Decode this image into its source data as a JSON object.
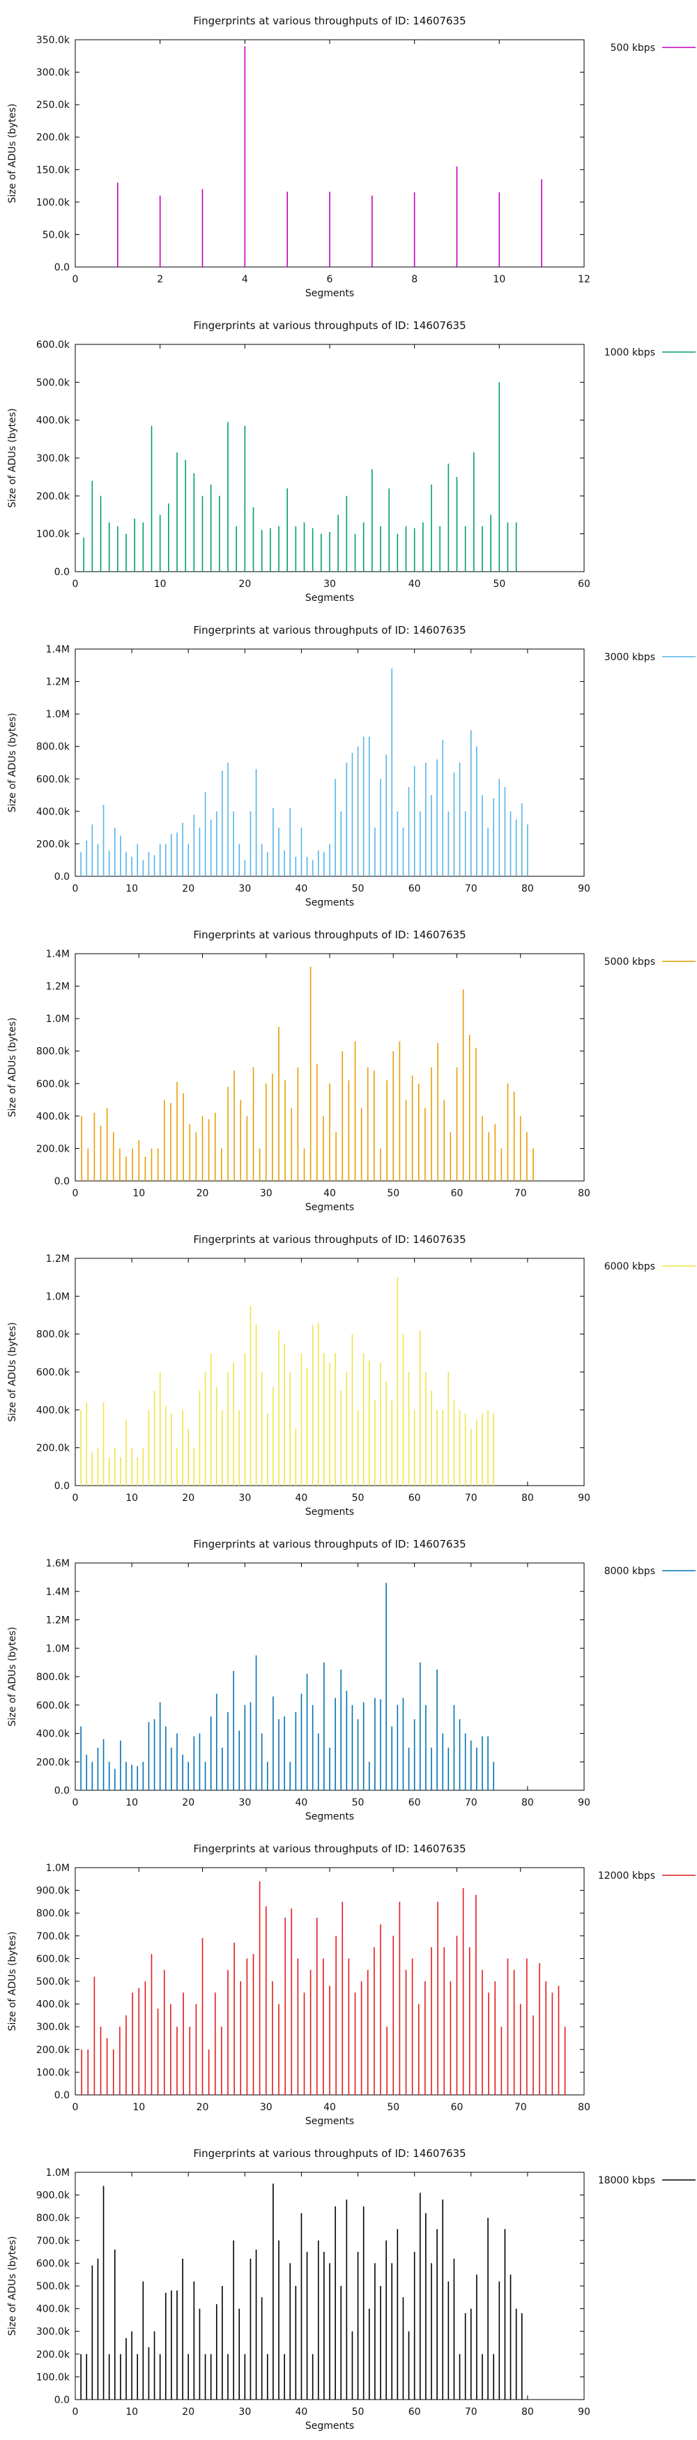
{
  "chart_data": [
    {
      "type": "bar",
      "title": "Fingerprints at various throughputs of ID: 14607635",
      "xlabel": "Segments",
      "ylabel": "Size of ADUs (bytes)",
      "legend": "top-right",
      "series": [
        {
          "name": "500 kbps",
          "color": "#c000c0",
          "x": [
            1,
            2,
            3,
            4,
            5,
            6,
            7,
            8,
            9,
            10,
            11
          ],
          "values": [
            130000,
            110000,
            120000,
            340000,
            116000,
            116000,
            110000,
            115000,
            155000,
            115000,
            135000
          ]
        }
      ],
      "xlim": [
        0,
        12
      ],
      "ylim": [
        0,
        350000
      ],
      "xticks": [
        0,
        2,
        4,
        6,
        8,
        10,
        12
      ],
      "xtick_labels": [
        "0",
        "2",
        "4",
        "6",
        "8",
        "10",
        "12"
      ],
      "yticks": [
        0,
        50000,
        100000,
        150000,
        200000,
        250000,
        300000,
        350000
      ],
      "ytick_labels": [
        "0.0",
        "50.0k",
        "100.0k",
        "150.0k",
        "200.0k",
        "250.0k",
        "300.0k",
        "350.0k"
      ]
    },
    {
      "type": "bar",
      "title": "Fingerprints at various throughputs of ID: 14607635",
      "xlabel": "Segments",
      "ylabel": "Size of ADUs (bytes)",
      "legend": "top-right",
      "series": [
        {
          "name": "1000 kbps",
          "color": "#009e73",
          "values": [
            90000,
            240000,
            200000,
            130000,
            120000,
            100000,
            140000,
            130000,
            385000,
            150000,
            180000,
            315000,
            295000,
            260000,
            200000,
            230000,
            200000,
            395000,
            120000,
            385000,
            170000,
            110000,
            115000,
            120000,
            220000,
            120000,
            130000,
            115000,
            100000,
            105000,
            150000,
            200000,
            100000,
            130000,
            270000,
            120000,
            220000,
            100000,
            120000,
            115000,
            130000,
            230000,
            120000,
            285000,
            250000,
            120000,
            315000,
            120000,
            150000,
            500000,
            130000,
            130000
          ]
        }
      ],
      "xlim": [
        0,
        60
      ],
      "ylim": [
        0,
        600000
      ],
      "xticks": [
        0,
        10,
        20,
        30,
        40,
        50,
        60
      ],
      "xtick_labels": [
        "0",
        "10",
        "20",
        "30",
        "40",
        "50",
        "60"
      ],
      "yticks": [
        0,
        100000,
        200000,
        300000,
        400000,
        500000,
        600000
      ],
      "ytick_labels": [
        "0.0",
        "100.0k",
        "200.0k",
        "300.0k",
        "400.0k",
        "500.0k",
        "600.0k"
      ]
    },
    {
      "type": "bar",
      "title": "Fingerprints at various throughputs of ID: 14607635",
      "xlabel": "Segments",
      "ylabel": "Size of ADUs (bytes)",
      "legend": "top-right",
      "series": [
        {
          "name": "3000 kbps",
          "color": "#56b4e9",
          "values": [
            150000,
            220000,
            320000,
            200000,
            440000,
            160000,
            300000,
            250000,
            150000,
            120000,
            200000,
            100000,
            150000,
            130000,
            200000,
            200000,
            260000,
            270000,
            330000,
            200000,
            380000,
            300000,
            520000,
            350000,
            400000,
            650000,
            700000,
            400000,
            200000,
            100000,
            400000,
            660000,
            200000,
            150000,
            420000,
            300000,
            160000,
            420000,
            120000,
            300000,
            120000,
            100000,
            160000,
            150000,
            200000,
            600000,
            400000,
            700000,
            760000,
            800000,
            860000,
            860000,
            300000,
            600000,
            750000,
            1280000,
            400000,
            300000,
            550000,
            680000,
            400000,
            700000,
            500000,
            720000,
            840000,
            400000,
            640000,
            700000,
            400000,
            900000,
            800000,
            500000,
            300000,
            480000,
            600000,
            550000,
            400000,
            350000,
            450000,
            320000
          ]
        }
      ],
      "xlim": [
        0,
        90
      ],
      "ylim": [
        0,
        1400000
      ],
      "xticks": [
        0,
        10,
        20,
        30,
        40,
        50,
        60,
        70,
        80,
        90
      ],
      "xtick_labels": [
        "0",
        "10",
        "20",
        "30",
        "40",
        "50",
        "60",
        "70",
        "80",
        "90"
      ],
      "yticks": [
        0,
        200000,
        400000,
        600000,
        800000,
        1000000,
        1200000,
        1400000
      ],
      "ytick_labels": [
        "0.0",
        "200.0k",
        "400.0k",
        "600.0k",
        "800.0k",
        "1.0M",
        "1.2M",
        "1.4M"
      ]
    },
    {
      "type": "bar",
      "title": "Fingerprints at various throughputs of ID: 14607635",
      "xlabel": "Segments",
      "ylabel": "Size of ADUs (bytes)",
      "legend": "top-right",
      "series": [
        {
          "name": "5000 kbps",
          "color": "#e69f00",
          "values": [
            400000,
            200000,
            420000,
            340000,
            450000,
            300000,
            200000,
            150000,
            200000,
            250000,
            150000,
            200000,
            200000,
            500000,
            480000,
            610000,
            540000,
            350000,
            300000,
            400000,
            380000,
            420000,
            200000,
            580000,
            680000,
            500000,
            400000,
            700000,
            200000,
            600000,
            660000,
            950000,
            620000,
            450000,
            700000,
            200000,
            1320000,
            720000,
            400000,
            600000,
            300000,
            800000,
            620000,
            860000,
            450000,
            700000,
            680000,
            200000,
            620000,
            800000,
            860000,
            500000,
            650000,
            600000,
            450000,
            700000,
            850000,
            500000,
            300000,
            700000,
            1180000,
            900000,
            820000,
            400000,
            300000,
            350000,
            200000,
            600000,
            550000,
            400000,
            300000,
            200000
          ]
        }
      ],
      "xlim": [
        0,
        80
      ],
      "ylim": [
        0,
        1400000
      ],
      "xticks": [
        0,
        10,
        20,
        30,
        40,
        50,
        60,
        70,
        80
      ],
      "xtick_labels": [
        "0",
        "10",
        "20",
        "30",
        "40",
        "50",
        "60",
        "70",
        "80"
      ],
      "yticks": [
        0,
        200000,
        400000,
        600000,
        800000,
        1000000,
        1200000,
        1400000
      ],
      "ytick_labels": [
        "0.0",
        "200.0k",
        "400.0k",
        "600.0k",
        "800.0k",
        "1.0M",
        "1.2M",
        "1.4M"
      ]
    },
    {
      "type": "bar",
      "title": "Fingerprints at various throughputs of ID: 14607635",
      "xlabel": "Segments",
      "ylabel": "Size of ADUs (bytes)",
      "legend": "top-right",
      "series": [
        {
          "name": "6000 kbps",
          "color": "#f0e442",
          "values": [
            400000,
            440000,
            180000,
            200000,
            440000,
            150000,
            200000,
            150000,
            350000,
            200000,
            150000,
            200000,
            400000,
            500000,
            600000,
            420000,
            380000,
            200000,
            400000,
            300000,
            200000,
            500000,
            600000,
            700000,
            520000,
            400000,
            600000,
            650000,
            400000,
            700000,
            950000,
            850000,
            600000,
            380000,
            520000,
            820000,
            750000,
            600000,
            300000,
            700000,
            620000,
            850000,
            860000,
            700000,
            650000,
            700000,
            500000,
            600000,
            800000,
            400000,
            700000,
            660000,
            450000,
            650000,
            550000,
            450000,
            1100000,
            800000,
            600000,
            400000,
            820000,
            600000,
            500000,
            400000,
            400000,
            600000,
            450000,
            400000,
            380000,
            300000,
            350000,
            380000,
            400000,
            380000
          ]
        }
      ],
      "xlim": [
        0,
        90
      ],
      "ylim": [
        0,
        1200000
      ],
      "xticks": [
        0,
        10,
        20,
        30,
        40,
        50,
        60,
        70,
        80,
        90
      ],
      "xtick_labels": [
        "0",
        "10",
        "20",
        "30",
        "40",
        "50",
        "60",
        "70",
        "80",
        "90"
      ],
      "yticks": [
        0,
        200000,
        400000,
        600000,
        800000,
        1000000,
        1200000
      ],
      "ytick_labels": [
        "0.0",
        "200.0k",
        "400.0k",
        "600.0k",
        "800.0k",
        "1.0M",
        "1.2M"
      ]
    },
    {
      "type": "bar",
      "title": "Fingerprints at various throughputs of ID: 14607635",
      "xlabel": "Segments",
      "ylabel": "Size of ADUs (bytes)",
      "legend": "top-right",
      "series": [
        {
          "name": "8000 kbps",
          "color": "#0072b2",
          "values": [
            450000,
            250000,
            200000,
            300000,
            360000,
            200000,
            150000,
            350000,
            200000,
            180000,
            170000,
            200000,
            480000,
            500000,
            620000,
            450000,
            300000,
            400000,
            250000,
            200000,
            380000,
            400000,
            200000,
            520000,
            680000,
            300000,
            550000,
            840000,
            420000,
            600000,
            620000,
            950000,
            400000,
            200000,
            660000,
            500000,
            520000,
            200000,
            550000,
            680000,
            820000,
            600000,
            400000,
            900000,
            300000,
            650000,
            850000,
            700000,
            600000,
            500000,
            620000,
            200000,
            650000,
            640000,
            1460000,
            450000,
            600000,
            650000,
            300000,
            500000,
            900000,
            600000,
            300000,
            850000,
            400000,
            300000,
            600000,
            500000,
            400000,
            350000,
            300000,
            380000,
            380000,
            200000
          ]
        }
      ],
      "xlim": [
        0,
        90
      ],
      "ylim": [
        0,
        1600000
      ],
      "xticks": [
        0,
        10,
        20,
        30,
        40,
        50,
        60,
        70,
        80,
        90
      ],
      "xtick_labels": [
        "0",
        "10",
        "20",
        "30",
        "40",
        "50",
        "60",
        "70",
        "80",
        "90"
      ],
      "yticks": [
        0,
        200000,
        400000,
        600000,
        800000,
        1000000,
        1200000,
        1400000,
        1600000
      ],
      "ytick_labels": [
        "0.0",
        "200.0k",
        "400.0k",
        "600.0k",
        "800.0k",
        "1.0M",
        "1.2M",
        "1.4M",
        "1.6M"
      ]
    },
    {
      "type": "bar",
      "title": "Fingerprints at various throughputs of ID: 14607635",
      "xlabel": "Segments",
      "ylabel": "Size of ADUs (bytes)",
      "legend": "top-right",
      "series": [
        {
          "name": "12000 kbps",
          "color": "#e41a1c",
          "values": [
            200000,
            200000,
            520000,
            300000,
            250000,
            200000,
            300000,
            350000,
            450000,
            470000,
            500000,
            620000,
            380000,
            550000,
            400000,
            300000,
            450000,
            300000,
            400000,
            690000,
            200000,
            450000,
            300000,
            550000,
            670000,
            500000,
            600000,
            620000,
            940000,
            830000,
            500000,
            400000,
            780000,
            820000,
            600000,
            450000,
            550000,
            780000,
            600000,
            480000,
            700000,
            850000,
            600000,
            450000,
            500000,
            550000,
            650000,
            750000,
            300000,
            700000,
            850000,
            550000,
            600000,
            400000,
            500000,
            650000,
            850000,
            650000,
            500000,
            700000,
            910000,
            650000,
            880000,
            550000,
            450000,
            500000,
            300000,
            600000,
            550000,
            400000,
            600000,
            350000,
            580000,
            500000,
            450000,
            480000,
            300000
          ]
        }
      ],
      "xlim": [
        0,
        80
      ],
      "ylim": [
        0,
        1000000
      ],
      "xticks": [
        0,
        10,
        20,
        30,
        40,
        50,
        60,
        70,
        80
      ],
      "xtick_labels": [
        "0",
        "10",
        "20",
        "30",
        "40",
        "50",
        "60",
        "70",
        "80"
      ],
      "yticks": [
        0,
        100000,
        200000,
        300000,
        400000,
        500000,
        600000,
        700000,
        800000,
        900000,
        1000000
      ],
      "ytick_labels": [
        "0.0",
        "100.0k",
        "200.0k",
        "300.0k",
        "400.0k",
        "500.0k",
        "600.0k",
        "700.0k",
        "800.0k",
        "900.0k",
        "1.0M"
      ]
    },
    {
      "type": "bar",
      "title": "Fingerprints at various throughputs of ID: 14607635",
      "xlabel": "Segments",
      "ylabel": "Size of ADUs (bytes)",
      "legend": "top-right",
      "series": [
        {
          "name": "18000 kbps",
          "color": "#000000",
          "values": [
            200000,
            200000,
            590000,
            620000,
            940000,
            200000,
            660000,
            200000,
            270000,
            300000,
            200000,
            520000,
            230000,
            300000,
            200000,
            470000,
            480000,
            480000,
            620000,
            200000,
            520000,
            400000,
            200000,
            200000,
            420000,
            500000,
            200000,
            700000,
            400000,
            200000,
            620000,
            660000,
            450000,
            200000,
            950000,
            700000,
            200000,
            600000,
            500000,
            820000,
            650000,
            200000,
            700000,
            650000,
            600000,
            850000,
            500000,
            880000,
            300000,
            650000,
            850000,
            400000,
            600000,
            500000,
            700000,
            600000,
            750000,
            450000,
            300000,
            650000,
            910000,
            820000,
            600000,
            750000,
            880000,
            520000,
            620000,
            200000,
            380000,
            400000,
            550000,
            200000,
            800000,
            200000,
            520000,
            750000,
            550000,
            400000,
            380000
          ]
        }
      ],
      "xlim": [
        0,
        90
      ],
      "ylim": [
        0,
        1000000
      ],
      "xticks": [
        0,
        10,
        20,
        30,
        40,
        50,
        60,
        70,
        80,
        90
      ],
      "xtick_labels": [
        "0",
        "10",
        "20",
        "30",
        "40",
        "50",
        "60",
        "70",
        "80",
        "90"
      ],
      "yticks": [
        0,
        100000,
        200000,
        300000,
        400000,
        500000,
        600000,
        700000,
        800000,
        900000,
        1000000
      ],
      "ytick_labels": [
        "0.0",
        "100.0k",
        "200.0k",
        "300.0k",
        "400.0k",
        "500.0k",
        "600.0k",
        "700.0k",
        "800.0k",
        "900.0k",
        "1.0M"
      ]
    }
  ]
}
